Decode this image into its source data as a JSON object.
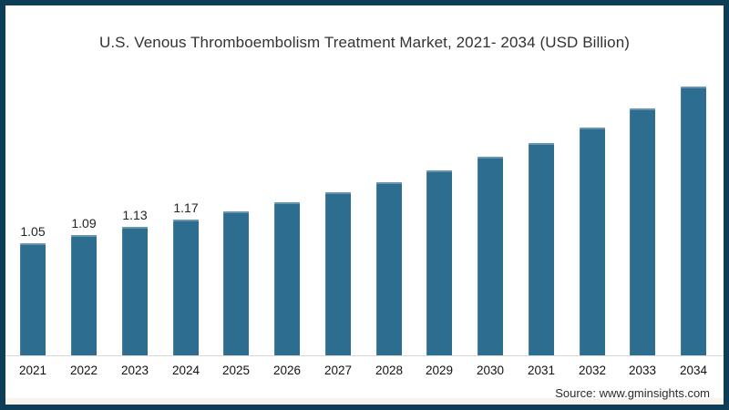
{
  "title": "U.S. Venous Thromboembolism Treatment Market, 2021- 2034 (USD Billion)",
  "source": "Source: www.gminsights.com",
  "colors": {
    "bar": "#2d6d90",
    "frame_border": "#0e3e57",
    "axis_line": "#d8d8d8",
    "title_text": "#333333",
    "label_text": "#222222",
    "footer_strip": "#f6f4ee"
  },
  "chart_data": {
    "type": "bar",
    "title": "U.S. Venous Thromboembolism Treatment Market, 2021- 2034 (USD Billion)",
    "xlabel": "",
    "ylabel": "",
    "categories": [
      "2021",
      "2022",
      "2023",
      "2024",
      "2025",
      "2026",
      "2027",
      "2028",
      "2029",
      "2030",
      "2031",
      "2032",
      "2033",
      "2034"
    ],
    "values": [
      1.05,
      1.09,
      1.13,
      1.17,
      1.21,
      1.26,
      1.31,
      1.36,
      1.42,
      1.49,
      1.56,
      1.64,
      1.74,
      1.85
    ],
    "data_labels": [
      "1.05",
      "1.09",
      "1.13",
      "1.17",
      "",
      "",
      "",
      "",
      "",
      "",
      "",
      "",
      "",
      ""
    ],
    "ylim": [
      0.474,
      1.97
    ],
    "grid": false,
    "legend": false,
    "bar_color": "#2d6d90"
  }
}
